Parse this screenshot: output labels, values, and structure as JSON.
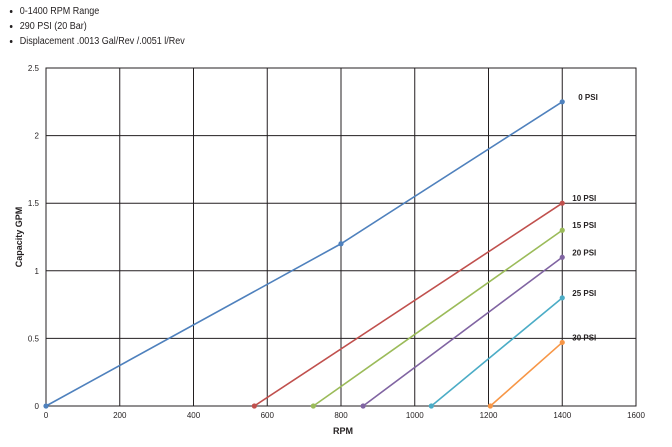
{
  "bullets": [
    "0-1400 RPM Range",
    "290 PSI (20 Bar)",
    "Displacement .0013 Gal/Rev /.0051 l/Rev"
  ],
  "chart_data": {
    "type": "line",
    "xlabel": "RPM",
    "ylabel": "Capacity GPM",
    "xlim": [
      0,
      1600
    ],
    "ylim": [
      0,
      2.5
    ],
    "xticks": [
      0,
      200,
      400,
      600,
      800,
      1000,
      1200,
      1400,
      1600
    ],
    "yticks": [
      0,
      0.5,
      1,
      1.5,
      2,
      2.5
    ],
    "xtick_labels": [
      "0",
      "200",
      "400",
      "600",
      "800",
      "1000",
      "1200",
      "1400",
      "1600"
    ],
    "ytick_labels": [
      "0",
      "0.5",
      "1",
      "1.5",
      "2",
      "2.5"
    ],
    "grid": true,
    "legend": "none",
    "series": [
      {
        "name": "0 PSI",
        "color": "#4f81bd",
        "points": [
          [
            0,
            0
          ],
          [
            800,
            1.2
          ],
          [
            1400,
            2.25
          ]
        ]
      },
      {
        "name": "10 PSI",
        "color": "#c0504d",
        "points": [
          [
            565,
            0
          ],
          [
            1400,
            1.5
          ]
        ]
      },
      {
        "name": "15 PSI",
        "color": "#9bbb59",
        "points": [
          [
            725,
            0
          ],
          [
            1400,
            1.3
          ]
        ]
      },
      {
        "name": "20 PSI",
        "color": "#8064a2",
        "points": [
          [
            860,
            0
          ],
          [
            1400,
            1.1
          ]
        ]
      },
      {
        "name": "25 PSI",
        "color": "#4bacc6",
        "points": [
          [
            1045,
            0
          ],
          [
            1400,
            0.8
          ]
        ]
      },
      {
        "name": "30 PSI",
        "color": "#f79646",
        "points": [
          [
            1205,
            0
          ],
          [
            1400,
            0.47
          ]
        ]
      }
    ]
  }
}
